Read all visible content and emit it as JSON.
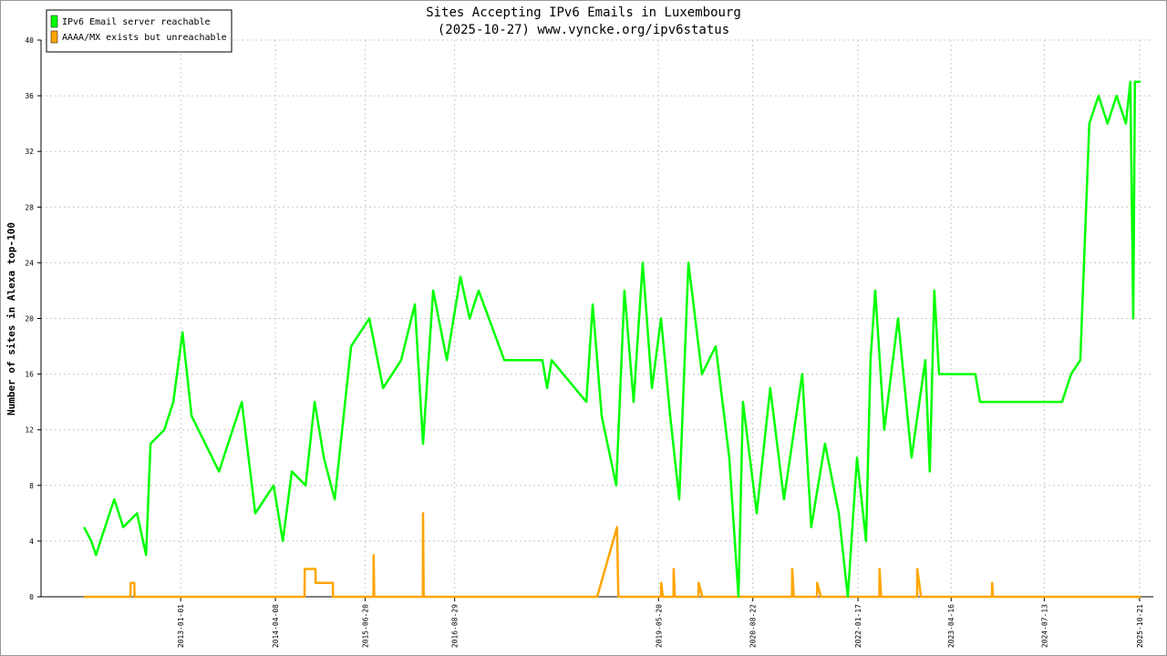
{
  "chart_data": {
    "type": "line",
    "title": "Sites Accepting IPv6 Emails in Luxembourg",
    "subtitle": "(2025-10-27) www.vyncke.org/ipv6status",
    "y_label": "Number of sites in Alexa top-100",
    "legend": "top-left",
    "grid": true,
    "xlim": [
      "2011-02-20",
      "2025-12-27"
    ],
    "xticks": [
      "2013-01-01",
      "2014-04-08",
      "2015-06-20",
      "2016-08-29",
      "2019-05-20",
      "2020-08-22",
      "2022-01-17",
      "2023-04-16",
      "2024-07-13",
      "2025-10-21"
    ],
    "ylim": [
      0,
      40
    ],
    "yticks": [
      0,
      4,
      8,
      12,
      16,
      20,
      24,
      28,
      32,
      36,
      40
    ],
    "series": [
      {
        "name": "IPv6 Email server reachable",
        "color": "#00ff00",
        "x": [
          "2011-09-18",
          "2011-10-23",
          "2011-11-15",
          "2011-12-07",
          "2012-02-12",
          "2012-03-27",
          "2012-06-02",
          "2012-07-16",
          "2012-08-07",
          "2012-10-13",
          "2012-11-26",
          "2013-01-10",
          "2013-02-23",
          "2013-05-01",
          "2013-07-07",
          "2013-10-26",
          "2013-12-31",
          "2014-03-30",
          "2014-05-14",
          "2014-06-27",
          "2014-09-02",
          "2014-10-16",
          "2014-11-30",
          "2015-01-22",
          "2015-04-12",
          "2015-07-10",
          "2015-09-15",
          "2015-12-12",
          "2016-02-17",
          "2016-03-28",
          "2016-05-16",
          "2016-07-22",
          "2016-09-26",
          "2016-11-10",
          "2016-12-24",
          "2017-04-28",
          "2017-10-31",
          "2017-11-23",
          "2017-12-15",
          "2018-06-02",
          "2018-07-03",
          "2018-08-16",
          "2018-10-26",
          "2018-12-05",
          "2019-01-19",
          "2019-03-04",
          "2019-04-18",
          "2019-06-01",
          "2019-07-16",
          "2019-08-29",
          "2019-10-13",
          "2019-12-18",
          "2020-02-23",
          "2020-04-29",
          "2020-06-13",
          "2020-07-05",
          "2020-09-10",
          "2020-11-15",
          "2021-01-21",
          "2021-04-20",
          "2021-06-03",
          "2021-08-09",
          "2021-10-15",
          "2021-11-28",
          "2022-01-12",
          "2022-02-25",
          "2022-03-19",
          "2022-04-11",
          "2022-05-25",
          "2022-07-31",
          "2022-10-05",
          "2022-12-11",
          "2023-01-02",
          "2023-01-24",
          "2023-02-16",
          "2023-08-12",
          "2023-09-04",
          "2024-10-08",
          "2024-11-21",
          "2025-01-05",
          "2025-02-18",
          "2025-04-04",
          "2025-05-18",
          "2025-07-01",
          "2025-08-15",
          "2025-09-06",
          "2025-09-20",
          "2025-09-28",
          "2025-10-26"
        ],
        "values": [
          5,
          4,
          3,
          4,
          7,
          5,
          6,
          3,
          11,
          12,
          14,
          19,
          13,
          11,
          9,
          14,
          6,
          8,
          4,
          9,
          8,
          14,
          10,
          7,
          18,
          20,
          15,
          17,
          21,
          11,
          22,
          17,
          23,
          20,
          22,
          17,
          17,
          15,
          17,
          14,
          21,
          13,
          8,
          22,
          14,
          24,
          15,
          20,
          13,
          7,
          24,
          16,
          18,
          10,
          0,
          14,
          6,
          15,
          7,
          16,
          5,
          11,
          6,
          0,
          10,
          4,
          17,
          22,
          12,
          20,
          10,
          17,
          9,
          22,
          16,
          16,
          14,
          14,
          16,
          17,
          34,
          36,
          34,
          36,
          34,
          37,
          20,
          37,
          37
        ]
      },
      {
        "name": "AAAA/MX exists but unreachable",
        "color": "#ffa500",
        "x": [
          "2011-09-18",
          "2012-05-01",
          "2012-05-02",
          "2012-05-20",
          "2012-05-21",
          "2014-08-28",
          "2014-08-29",
          "2014-10-20",
          "2014-10-21",
          "2015-01-13",
          "2015-01-14",
          "2015-07-30",
          "2015-07-31",
          "2015-08-03",
          "2016-03-27",
          "2016-03-28",
          "2016-03-31",
          "2018-07-25",
          "2018-10-30",
          "2018-11-05",
          "2019-06-01",
          "2019-06-02",
          "2019-06-10",
          "2019-08-01",
          "2019-08-02",
          "2019-08-08",
          "2019-12-01",
          "2019-12-02",
          "2019-12-20",
          "2021-03-01",
          "2021-03-02",
          "2021-03-10",
          "2021-07-01",
          "2021-07-02",
          "2021-07-20",
          "2022-05-01",
          "2022-05-02",
          "2022-05-10",
          "2022-11-01",
          "2022-11-02",
          "2022-11-20",
          "2023-11-01",
          "2023-11-02",
          "2023-11-06",
          "2025-10-26"
        ],
        "values": [
          0,
          0,
          1,
          1,
          0,
          0,
          2,
          2,
          1,
          1,
          0,
          0,
          3,
          0,
          0,
          6,
          0,
          0,
          5,
          0,
          0,
          1,
          0,
          0,
          2,
          0,
          0,
          1,
          0,
          0,
          2,
          0,
          0,
          1,
          0,
          0,
          2,
          0,
          0,
          2,
          0,
          0,
          1,
          0,
          0
        ]
      }
    ]
  }
}
